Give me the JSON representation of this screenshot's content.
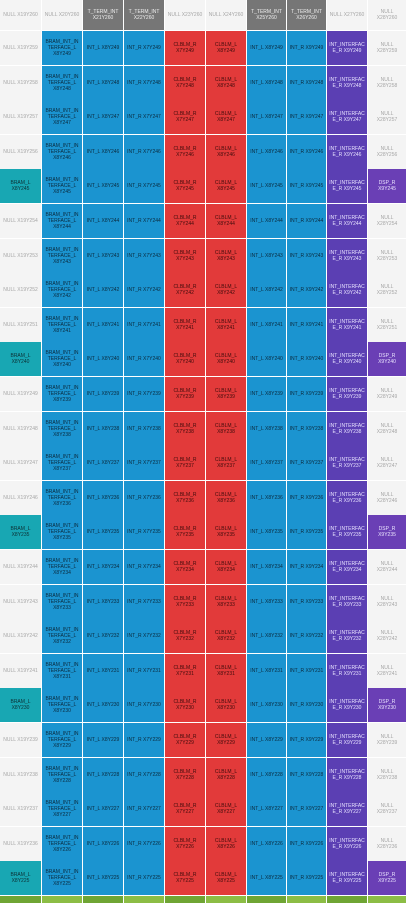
{
  "columns": [
    {
      "key": "c0",
      "type": "null_bram"
    },
    {
      "key": "c1",
      "type": "bram_int"
    },
    {
      "key": "c2",
      "type": "int_l"
    },
    {
      "key": "c3",
      "type": "int_r"
    },
    {
      "key": "c4",
      "type": "clblm_r"
    },
    {
      "key": "c5",
      "type": "clblm_l"
    },
    {
      "key": "c6",
      "type": "int_l"
    },
    {
      "key": "c7",
      "type": "int_r"
    },
    {
      "key": "c8",
      "type": "int_interface_r"
    },
    {
      "key": "c9",
      "type": "null_dsp"
    }
  ],
  "header_row": [
    "NULL X19Y260",
    "NULL X20Y260",
    "T_TERM_INT X21Y260",
    "T_TERM_INT X22Y260",
    "NULL X23Y260",
    "NULL X24Y260",
    "T_TERM_INT X25Y260",
    "T_TERM_INT X26Y260",
    "NULL X27Y260",
    "NULL X28Y260"
  ],
  "header_types": [
    "null",
    "null",
    "tterm",
    "tterm",
    "null",
    "null",
    "tterm",
    "tterm",
    "null",
    "null"
  ],
  "rows": [
    {
      "y": 249,
      "null_y": 259,
      "bram": false
    },
    {
      "y": 248,
      "null_y": 258,
      "bram": false
    },
    {
      "y": 247,
      "null_y": 257,
      "bram": false
    },
    {
      "y": 246,
      "null_y": 256,
      "bram": false
    },
    {
      "y": 245,
      "null_y": 255,
      "bram": true
    },
    {
      "y": 244,
      "null_y": 254,
      "bram": false
    },
    {
      "y": 243,
      "null_y": 253,
      "bram": false
    },
    {
      "y": 242,
      "null_y": 252,
      "bram": false
    },
    {
      "y": 241,
      "null_y": 251,
      "bram": false
    },
    {
      "y": 240,
      "null_y": 250,
      "bram": true
    },
    {
      "y": 239,
      "null_y": 249,
      "bram": false
    },
    {
      "y": 238,
      "null_y": 248,
      "bram": false
    },
    {
      "y": 237,
      "null_y": 247,
      "bram": false
    },
    {
      "y": 236,
      "null_y": 246,
      "bram": false
    },
    {
      "y": 235,
      "null_y": 245,
      "bram": true
    },
    {
      "y": 234,
      "null_y": 244,
      "bram": false
    },
    {
      "y": 233,
      "null_y": 243,
      "bram": false
    },
    {
      "y": 232,
      "null_y": 242,
      "bram": false
    },
    {
      "y": 231,
      "null_y": 241,
      "bram": false
    },
    {
      "y": 230,
      "null_y": 240,
      "bram": true
    },
    {
      "y": 229,
      "null_y": 239,
      "bram": false
    },
    {
      "y": 228,
      "null_y": 238,
      "bram": false
    },
    {
      "y": 227,
      "null_y": 237,
      "bram": false
    },
    {
      "y": 226,
      "null_y": 236,
      "bram": false
    },
    {
      "y": 225,
      "null_y": 235,
      "bram": true
    }
  ],
  "label_templates": {
    "null_left": "NULL X19Y{n}",
    "null_right": "NULL X28Y{n}",
    "bram_l": "BRAM_L X8Y{y}",
    "bram_int": "BRAM_INT_INTERFACE_L X8Y{y}",
    "int_l_a": "INT_L X8Y{y}",
    "int_r_a": "INT_R X7Y{y}",
    "clblm_r": "CLBLM_R X7Y{y}",
    "clblm_l": "CLBLM_L X8Y{y}",
    "int_l_b": "INT_L X8Y{y}",
    "int_r_b": "INT_R X9Y{y}",
    "int_interface_r": "INT_INTERFACE_R X9Y{y}",
    "dsp_r": "DSP_R X9Y{y}"
  },
  "colors": {
    "null": "#f4f4f4",
    "tterm": "#767676",
    "bram": "#18a7b3",
    "int": "#1b94d0",
    "clb": "#e23a3a",
    "int_interface": "#5b3fb3",
    "dsp": "#6a3fb5",
    "bottom_strip": "#6fa534"
  }
}
